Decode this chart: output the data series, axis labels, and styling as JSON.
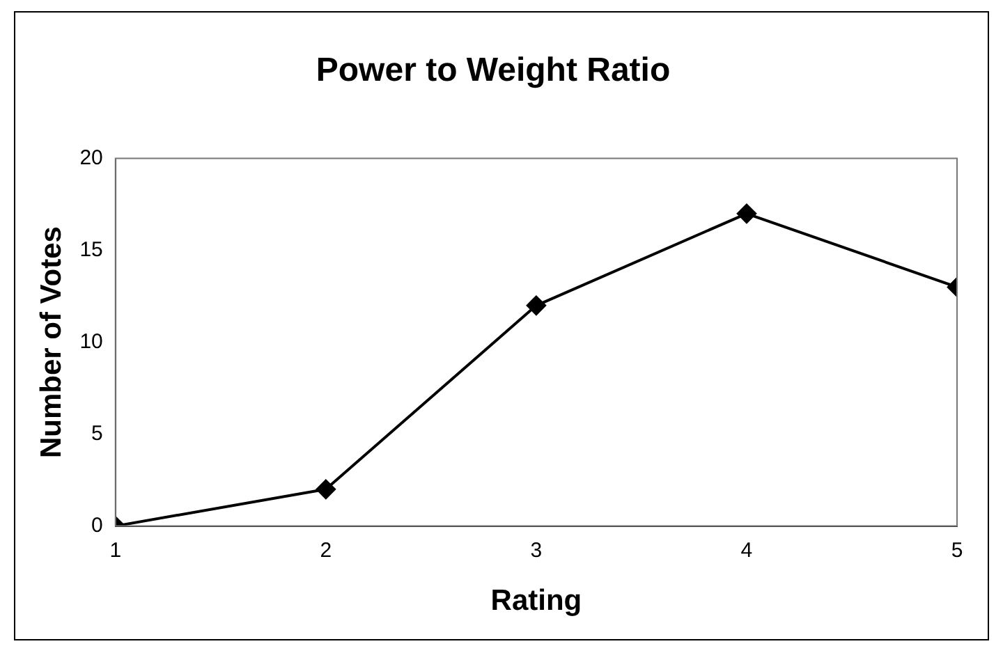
{
  "chart_data": {
    "type": "line",
    "title": "Power to Weight Ratio",
    "xlabel": "Rating",
    "ylabel": "Number of Votes",
    "x": [
      1,
      2,
      3,
      4,
      5
    ],
    "series": [
      {
        "color": "#000000",
        "values": [
          0,
          2,
          12,
          17,
          13
        ]
      }
    ],
    "xlim": [
      1,
      5
    ],
    "xticks": [
      1,
      2,
      3,
      4,
      5
    ],
    "ylim": [
      0,
      20
    ],
    "yticks": [
      0,
      5,
      10,
      15,
      20
    ],
    "grid": false,
    "legend": false,
    "marker": "diamond",
    "line_style": "solid"
  }
}
